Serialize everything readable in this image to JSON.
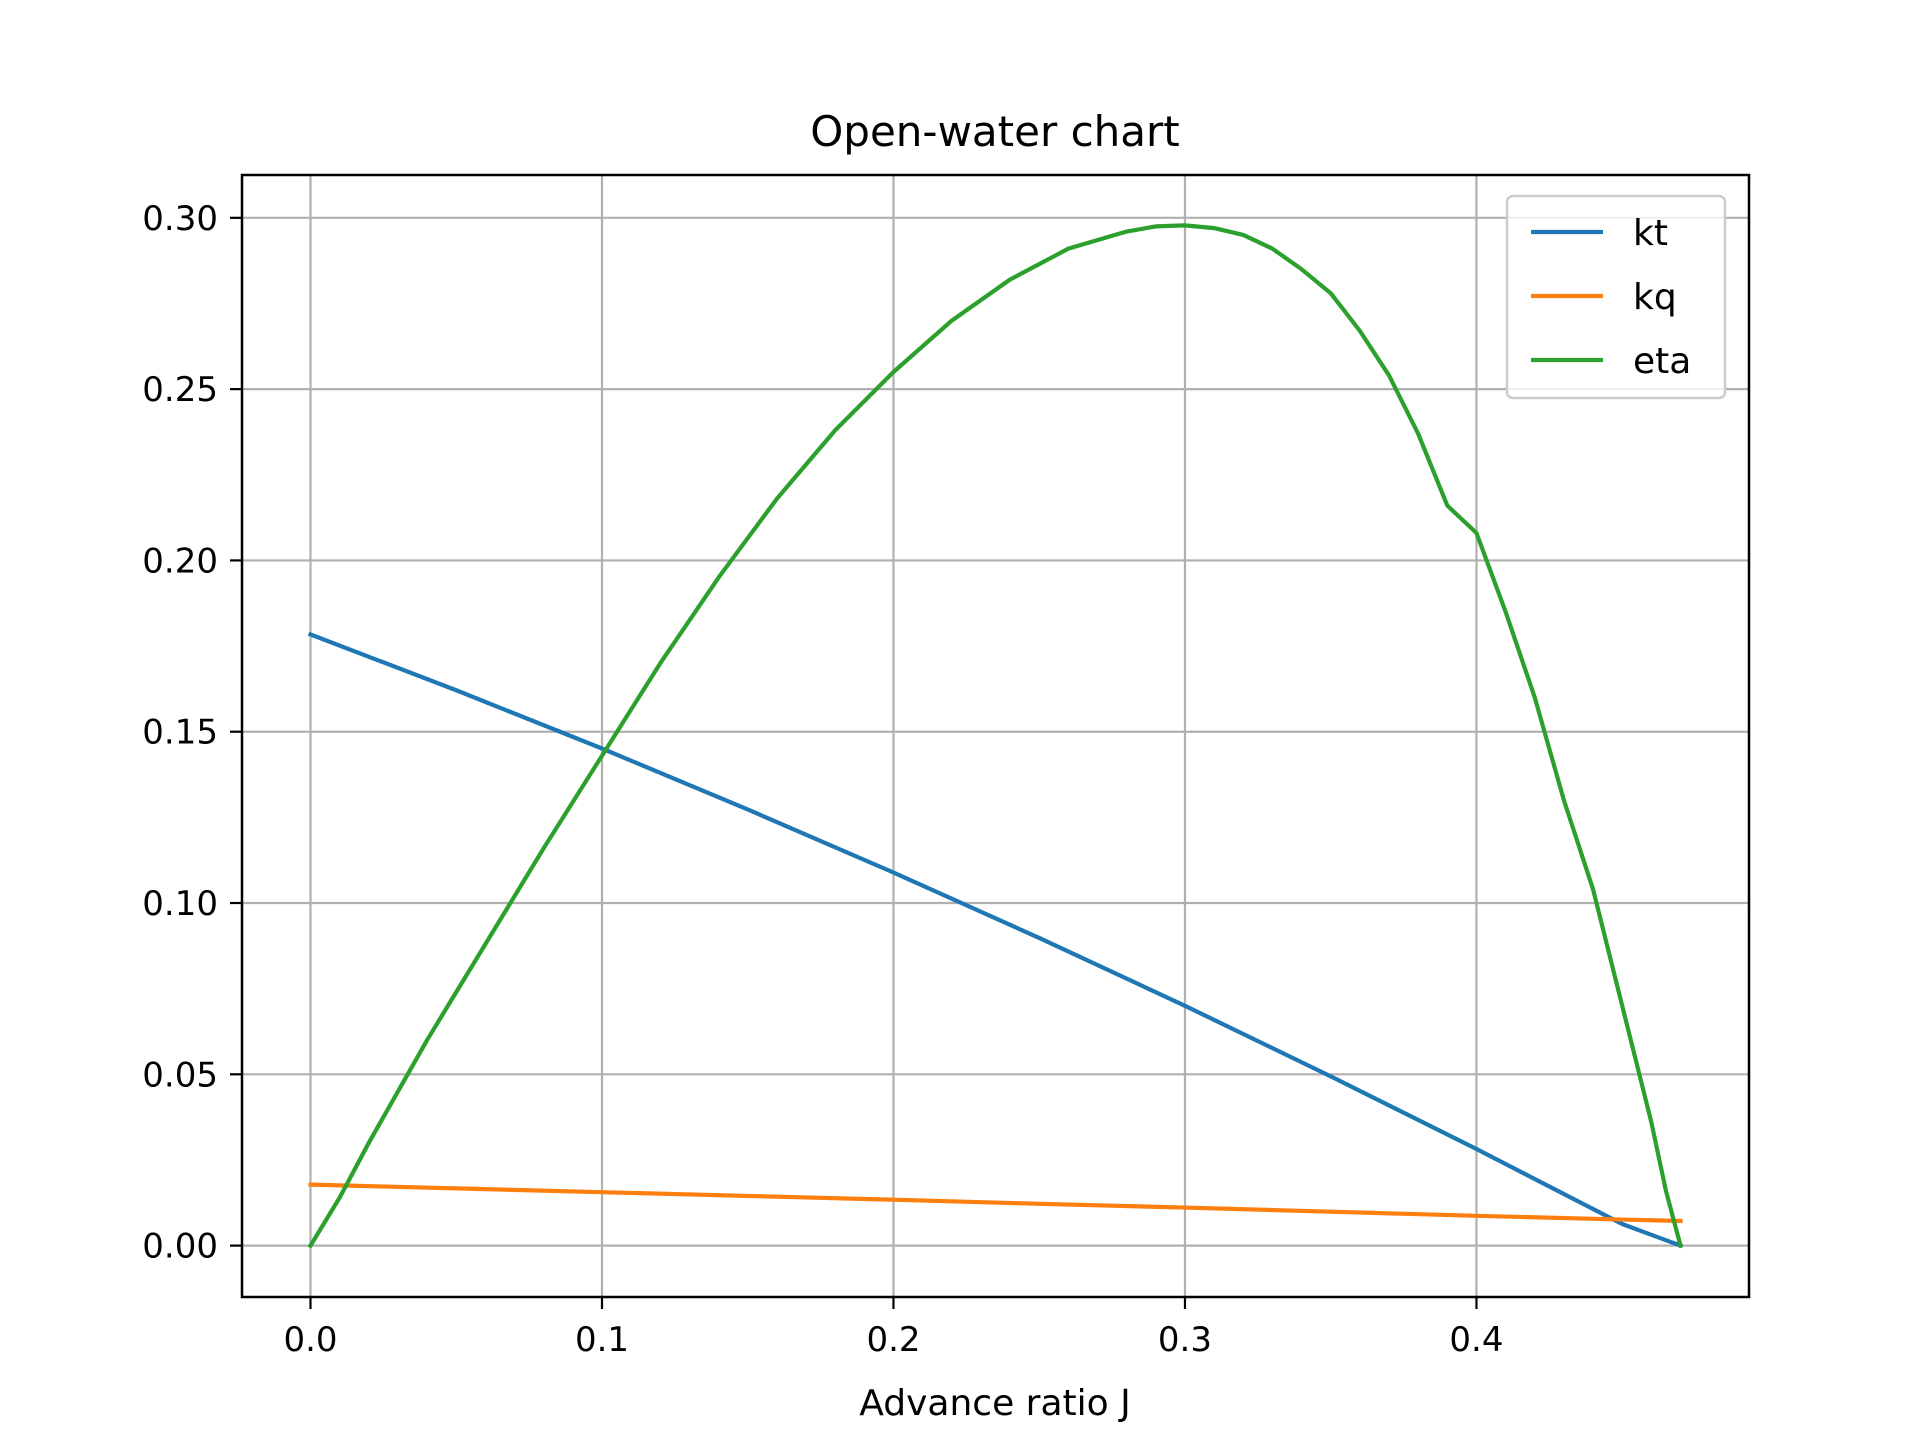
{
  "chart_data": {
    "type": "line",
    "title": "Open-water chart",
    "xlabel": "Advance ratio J",
    "ylabel": "",
    "xlim": [
      -0.0235,
      0.4935
    ],
    "ylim": [
      -0.015,
      0.3125
    ],
    "x_ticks": [
      0.0,
      0.1,
      0.2,
      0.3,
      0.4
    ],
    "x_tick_labels": [
      "0.0",
      "0.1",
      "0.2",
      "0.3",
      "0.4"
    ],
    "y_ticks": [
      0.0,
      0.05,
      0.1,
      0.15,
      0.2,
      0.25,
      0.3
    ],
    "y_tick_labels": [
      "0.00",
      "0.05",
      "0.10",
      "0.15",
      "0.20",
      "0.25",
      "0.30"
    ],
    "grid": true,
    "legend_position": "top-right",
    "series": [
      {
        "name": "kt",
        "color": "#1f77b4",
        "x": [
          0.0,
          0.05,
          0.1,
          0.15,
          0.2,
          0.25,
          0.3,
          0.35,
          0.4,
          0.45,
          0.47
        ],
        "y": [
          0.1784,
          0.1621,
          0.1451,
          0.1273,
          0.1089,
          0.0898,
          0.07,
          0.0494,
          0.0282,
          0.0063,
          0.0
        ]
      },
      {
        "name": "kq",
        "color": "#ff7f0e",
        "x": [
          0.0,
          0.05,
          0.1,
          0.15,
          0.2,
          0.25,
          0.3,
          0.35,
          0.4,
          0.45,
          0.47
        ],
        "y": [
          0.0178,
          0.0167,
          0.0156,
          0.0145,
          0.0134,
          0.0122,
          0.0111,
          0.0099,
          0.0087,
          0.0076,
          0.0072
        ]
      },
      {
        "name": "eta",
        "color": "#2ca02c",
        "x": [
          0.0,
          0.01,
          0.02,
          0.04,
          0.06,
          0.08,
          0.1,
          0.12,
          0.14,
          0.16,
          0.18,
          0.2,
          0.22,
          0.24,
          0.26,
          0.28,
          0.29,
          0.3,
          0.31,
          0.32,
          0.33,
          0.34,
          0.35,
          0.36,
          0.37,
          0.38,
          0.39,
          0.4,
          0.41,
          0.42,
          0.43,
          0.44,
          0.45,
          0.46,
          0.465,
          0.47
        ],
        "y": [
          0.0,
          0.014,
          0.03,
          0.06,
          0.088,
          0.116,
          0.143,
          0.17,
          0.195,
          0.218,
          0.238,
          0.255,
          0.27,
          0.282,
          0.291,
          0.296,
          0.2975,
          0.2978,
          0.297,
          0.295,
          0.291,
          0.285,
          0.278,
          0.267,
          0.254,
          0.237,
          0.216,
          0.208,
          0.185,
          0.16,
          0.13,
          0.104,
          0.07,
          0.036,
          0.016,
          0.0
        ]
      }
    ]
  }
}
